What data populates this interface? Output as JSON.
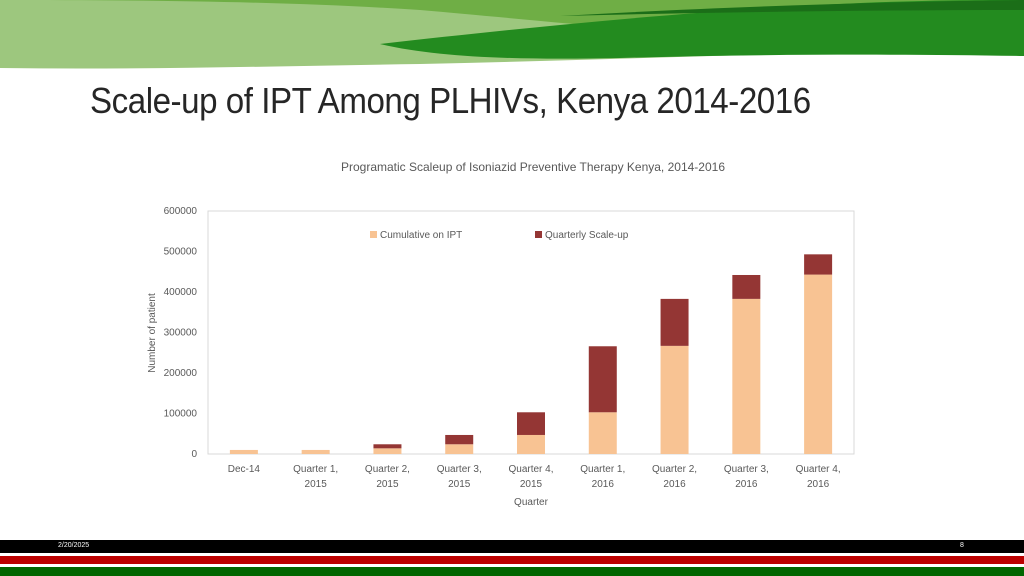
{
  "slide": {
    "title": "Scale-up of IPT Among PLHIVs, Kenya 2014-2016",
    "date": "2/20/2025",
    "page_number": "8"
  },
  "colors": {
    "cumulative": "#F8C393",
    "quarterly": "#943634",
    "green_dark": "#238B1F",
    "green_mid": "#6FAE45",
    "green_light": "#9DC77E",
    "kenya_black": "#000000",
    "kenya_red": "#BB0000",
    "kenya_green": "#006600"
  },
  "chart_data": {
    "type": "bar",
    "stacked": true,
    "title": "Programatic Scaleup of Isoniazid Preventive Therapy Kenya, 2014-2016",
    "xlabel": "Quarter",
    "ylabel": "Number of patient",
    "ylim": [
      0,
      600000
    ],
    "yticks": [
      "600000",
      "500000",
      "400000",
      "300000",
      "200000",
      "100000",
      "0"
    ],
    "categories": [
      [
        "Dec-14"
      ],
      [
        "Quarter 1,",
        "2015"
      ],
      [
        "Quarter 2,",
        "2015"
      ],
      [
        "Quarter 3,",
        "2015"
      ],
      [
        "Quarter 4,",
        "2015"
      ],
      [
        "Quarter 1,",
        "2016"
      ],
      [
        "Quarter 2,",
        "2016"
      ],
      [
        "Quarter 3,",
        "2016"
      ],
      [
        "Quarter 4,",
        "2016"
      ]
    ],
    "series": [
      {
        "name": "Cumulative on IPT",
        "values": [
          10000,
          10000,
          14000,
          24000,
          47000,
          103000,
          267000,
          383000,
          443000
        ]
      },
      {
        "name": "Quarterly Scale-up",
        "values": [
          0,
          0,
          10000,
          23000,
          56000,
          163000,
          116000,
          59000,
          50000
        ]
      }
    ],
    "legend_position": "top",
    "grid": false
  }
}
